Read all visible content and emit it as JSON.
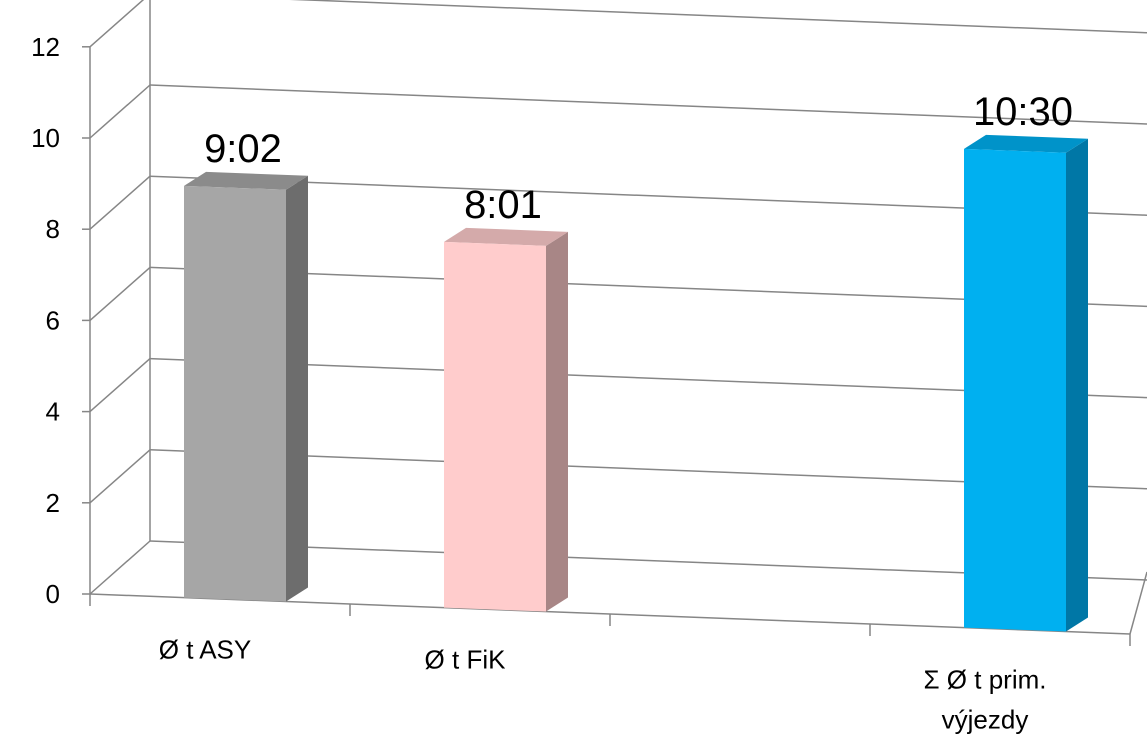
{
  "chart_data": {
    "type": "bar",
    "style": "3d-column",
    "categories": [
      "Ø t ASY",
      "Ø t FiK",
      "",
      "Σ Ø t prim. výjezdy"
    ],
    "category_lines": [
      [
        "Ø t ASY"
      ],
      [
        "Ø t FiK"
      ],
      [],
      [
        "Σ Ø t prim.",
        "výjezdy"
      ]
    ],
    "values": [
      9.03,
      8.02,
      null,
      10.5
    ],
    "data_labels": [
      "9:02",
      "8:01",
      "",
      "10:30"
    ],
    "colors": {
      "front": [
        "#a6a6a6",
        "#ffcccc",
        null,
        "#00b0f0"
      ],
      "side": [
        "#6d6d6d",
        "#a88686",
        null,
        "#0077a6"
      ],
      "top": [
        "#8b8b8b",
        "#d4aaaa",
        null,
        "#0093c9"
      ]
    },
    "ylim": [
      0,
      12
    ],
    "yticks": [
      "0",
      "2",
      "4",
      "6",
      "8",
      "10",
      "12"
    ],
    "grid": true,
    "legend": "none",
    "title": "",
    "xlabel": "",
    "ylabel": ""
  }
}
